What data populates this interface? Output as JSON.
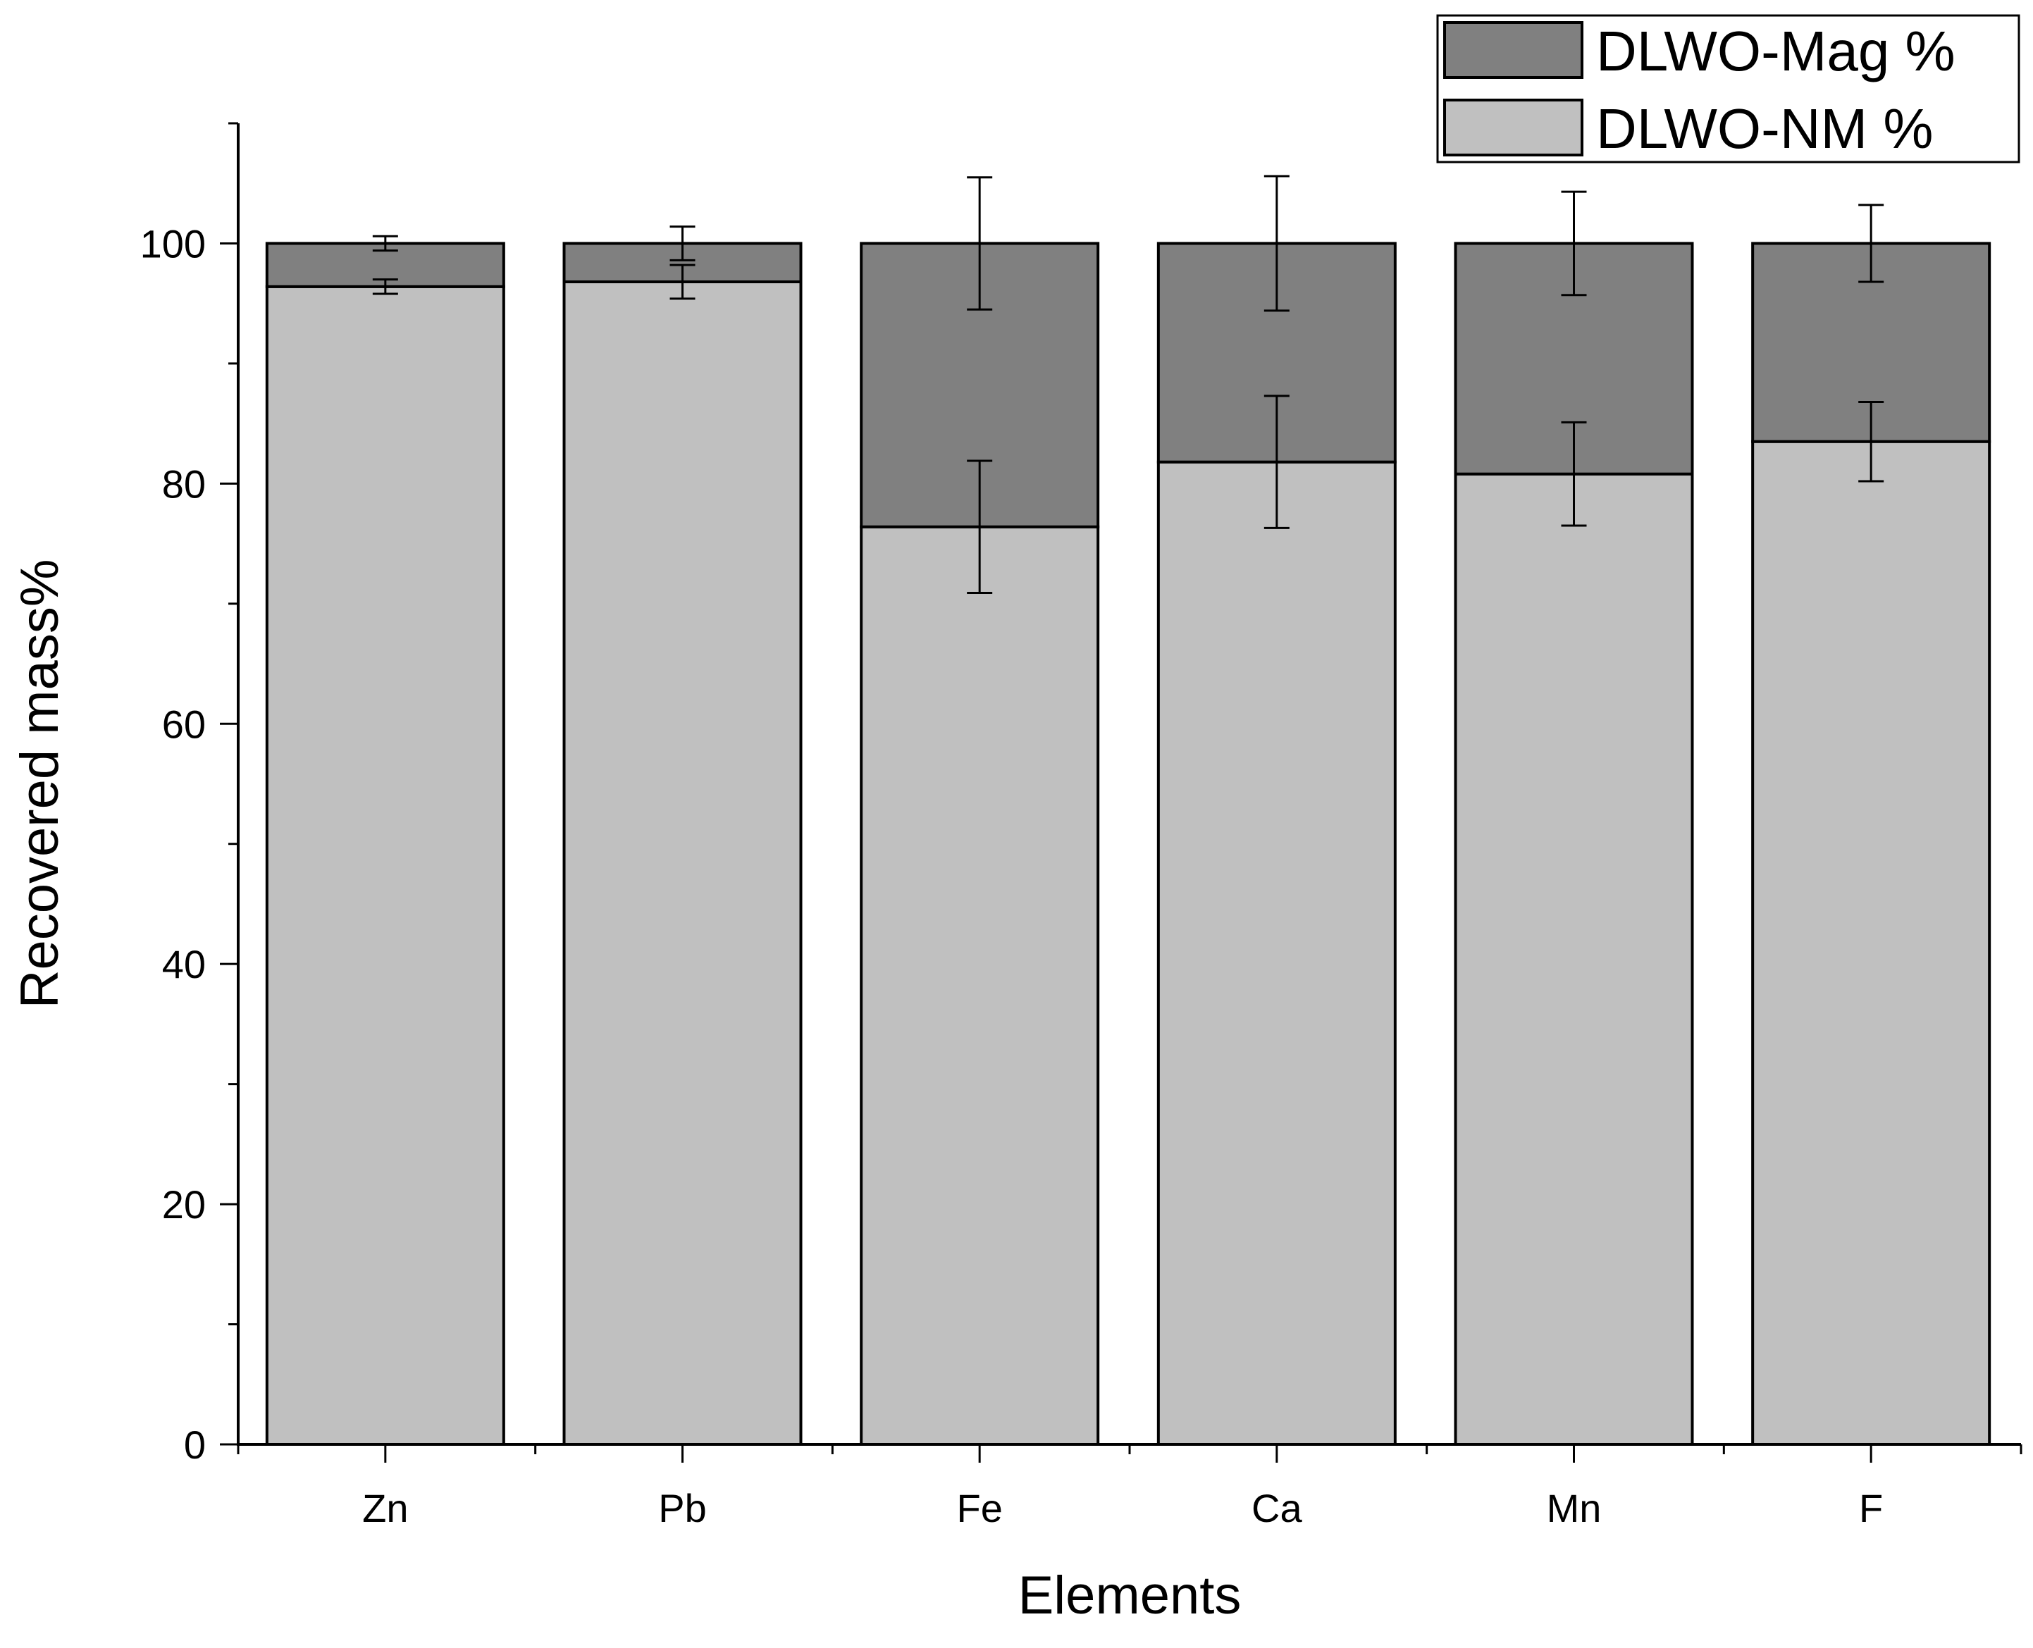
{
  "chart_data": {
    "type": "bar",
    "stacked": true,
    "categories": [
      "Zn",
      "Pb",
      "Fe",
      "Ca",
      "Mn",
      "F"
    ],
    "series": [
      {
        "name": "DLWO-NM %",
        "color": "#c0c0c0",
        "values": [
          96.4,
          96.8,
          76.4,
          81.8,
          80.8,
          83.5
        ],
        "errors": [
          0.6,
          1.4,
          5.5,
          5.5,
          4.3,
          3.3
        ]
      },
      {
        "name": "DLWO-Mag %",
        "color": "#808080",
        "values": [
          3.6,
          3.2,
          23.6,
          18.2,
          19.2,
          16.5
        ],
        "errors": [
          0.6,
          1.4,
          5.5,
          5.6,
          4.3,
          3.2
        ]
      }
    ],
    "title": "",
    "xlabel": "Elements",
    "ylabel": "Recovered mass%",
    "ylim": [
      0,
      110
    ],
    "yticks": [
      0,
      20,
      40,
      60,
      80,
      100
    ],
    "grid": false,
    "legend": {
      "position": "top-right",
      "order": [
        "DLWO-Mag %",
        "DLWO-NM %"
      ]
    }
  }
}
